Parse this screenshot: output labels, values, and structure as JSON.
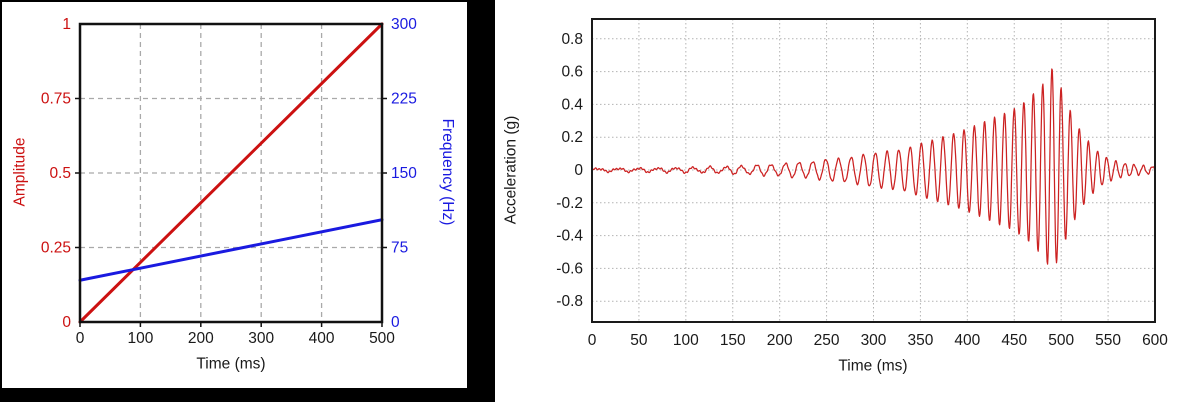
{
  "chart_data": [
    {
      "type": "line",
      "title": "",
      "xlabel": "Time (ms)",
      "xlim": [
        0,
        500
      ],
      "x_ticks": [
        0,
        100,
        200,
        300,
        400,
        500
      ],
      "x_tick_labels": [
        "0",
        "100",
        "200",
        "300",
        "400",
        "500"
      ],
      "grid": "dashed",
      "grid_color": "#a9a9a9",
      "frame_color": "#111111",
      "left_axis": {
        "label": "Amplitude",
        "color": "#cc1111",
        "lim": [
          0,
          1
        ],
        "tick_values": [
          0,
          0.25,
          0.5,
          0.75,
          1
        ],
        "tick_labels": [
          "0",
          "0.25",
          "0.5",
          "0.75",
          "1"
        ]
      },
      "right_axis": {
        "label": "Frequency (Hz)",
        "color": "#1a1ae0",
        "lim": [
          0,
          300
        ],
        "tick_values": [
          0,
          75,
          150,
          225,
          300
        ],
        "tick_labels": [
          "0",
          "75",
          "150",
          "225",
          "300"
        ]
      },
      "series": [
        {
          "name": "Amplitude",
          "axis": "left",
          "color": "#cc1111",
          "x": [
            0,
            500
          ],
          "y": [
            0,
            1
          ]
        },
        {
          "name": "Frequency",
          "axis": "right",
          "color": "#1a1ae0",
          "x": [
            0,
            500
          ],
          "y": [
            42,
            103
          ]
        }
      ]
    },
    {
      "type": "line",
      "title": "",
      "xlabel": "Time (ms)",
      "ylabel": "Acceleration (g)",
      "xlim": [
        0,
        600
      ],
      "ylim": [
        -0.93,
        0.93
      ],
      "x_ticks": [
        0,
        50,
        100,
        150,
        200,
        250,
        300,
        350,
        400,
        450,
        500,
        550,
        600
      ],
      "x_tick_labels": [
        "0",
        "50",
        "100",
        "150",
        "200",
        "250",
        "300",
        "350",
        "400",
        "450",
        "500",
        "550",
        "600"
      ],
      "y_tick_values": [
        0.8,
        0.6,
        0.4,
        0.2,
        0,
        -0.2,
        -0.4,
        -0.6,
        -0.8
      ],
      "y_tick_labels": [
        "0.8",
        "0.6",
        "0.4",
        "0.2",
        "0",
        "-0.2",
        "-0.4",
        "-0.6",
        "-0.8"
      ],
      "grid": "dotted",
      "grid_color": "#b3b3b3",
      "frame_color": "#1a1a1a",
      "label_color": "#1a1a1a",
      "signal": {
        "kind": "chirp",
        "color": "#cc2222",
        "freq_start_hz": 42,
        "freq_end_hz": 103,
        "sweep_end_ms": 500,
        "peak_g": 0.63,
        "peak_time_ms": 490,
        "envelope_keypoints": [
          [
            0,
            0.008
          ],
          [
            40,
            0.01
          ],
          [
            80,
            0.013
          ],
          [
            120,
            0.017
          ],
          [
            150,
            0.022
          ],
          [
            180,
            0.03
          ],
          [
            210,
            0.04
          ],
          [
            240,
            0.055
          ],
          [
            270,
            0.075
          ],
          [
            300,
            0.1
          ],
          [
            330,
            0.13
          ],
          [
            360,
            0.17
          ],
          [
            390,
            0.23
          ],
          [
            420,
            0.3
          ],
          [
            445,
            0.36
          ],
          [
            465,
            0.44
          ],
          [
            480,
            0.52
          ],
          [
            490,
            0.63
          ],
          [
            497,
            0.55
          ],
          [
            505,
            0.42
          ],
          [
            515,
            0.3
          ],
          [
            525,
            0.2
          ],
          [
            535,
            0.13
          ],
          [
            545,
            0.085
          ],
          [
            555,
            0.055
          ],
          [
            565,
            0.04
          ],
          [
            580,
            0.028
          ],
          [
            600,
            0.02
          ]
        ]
      }
    }
  ]
}
